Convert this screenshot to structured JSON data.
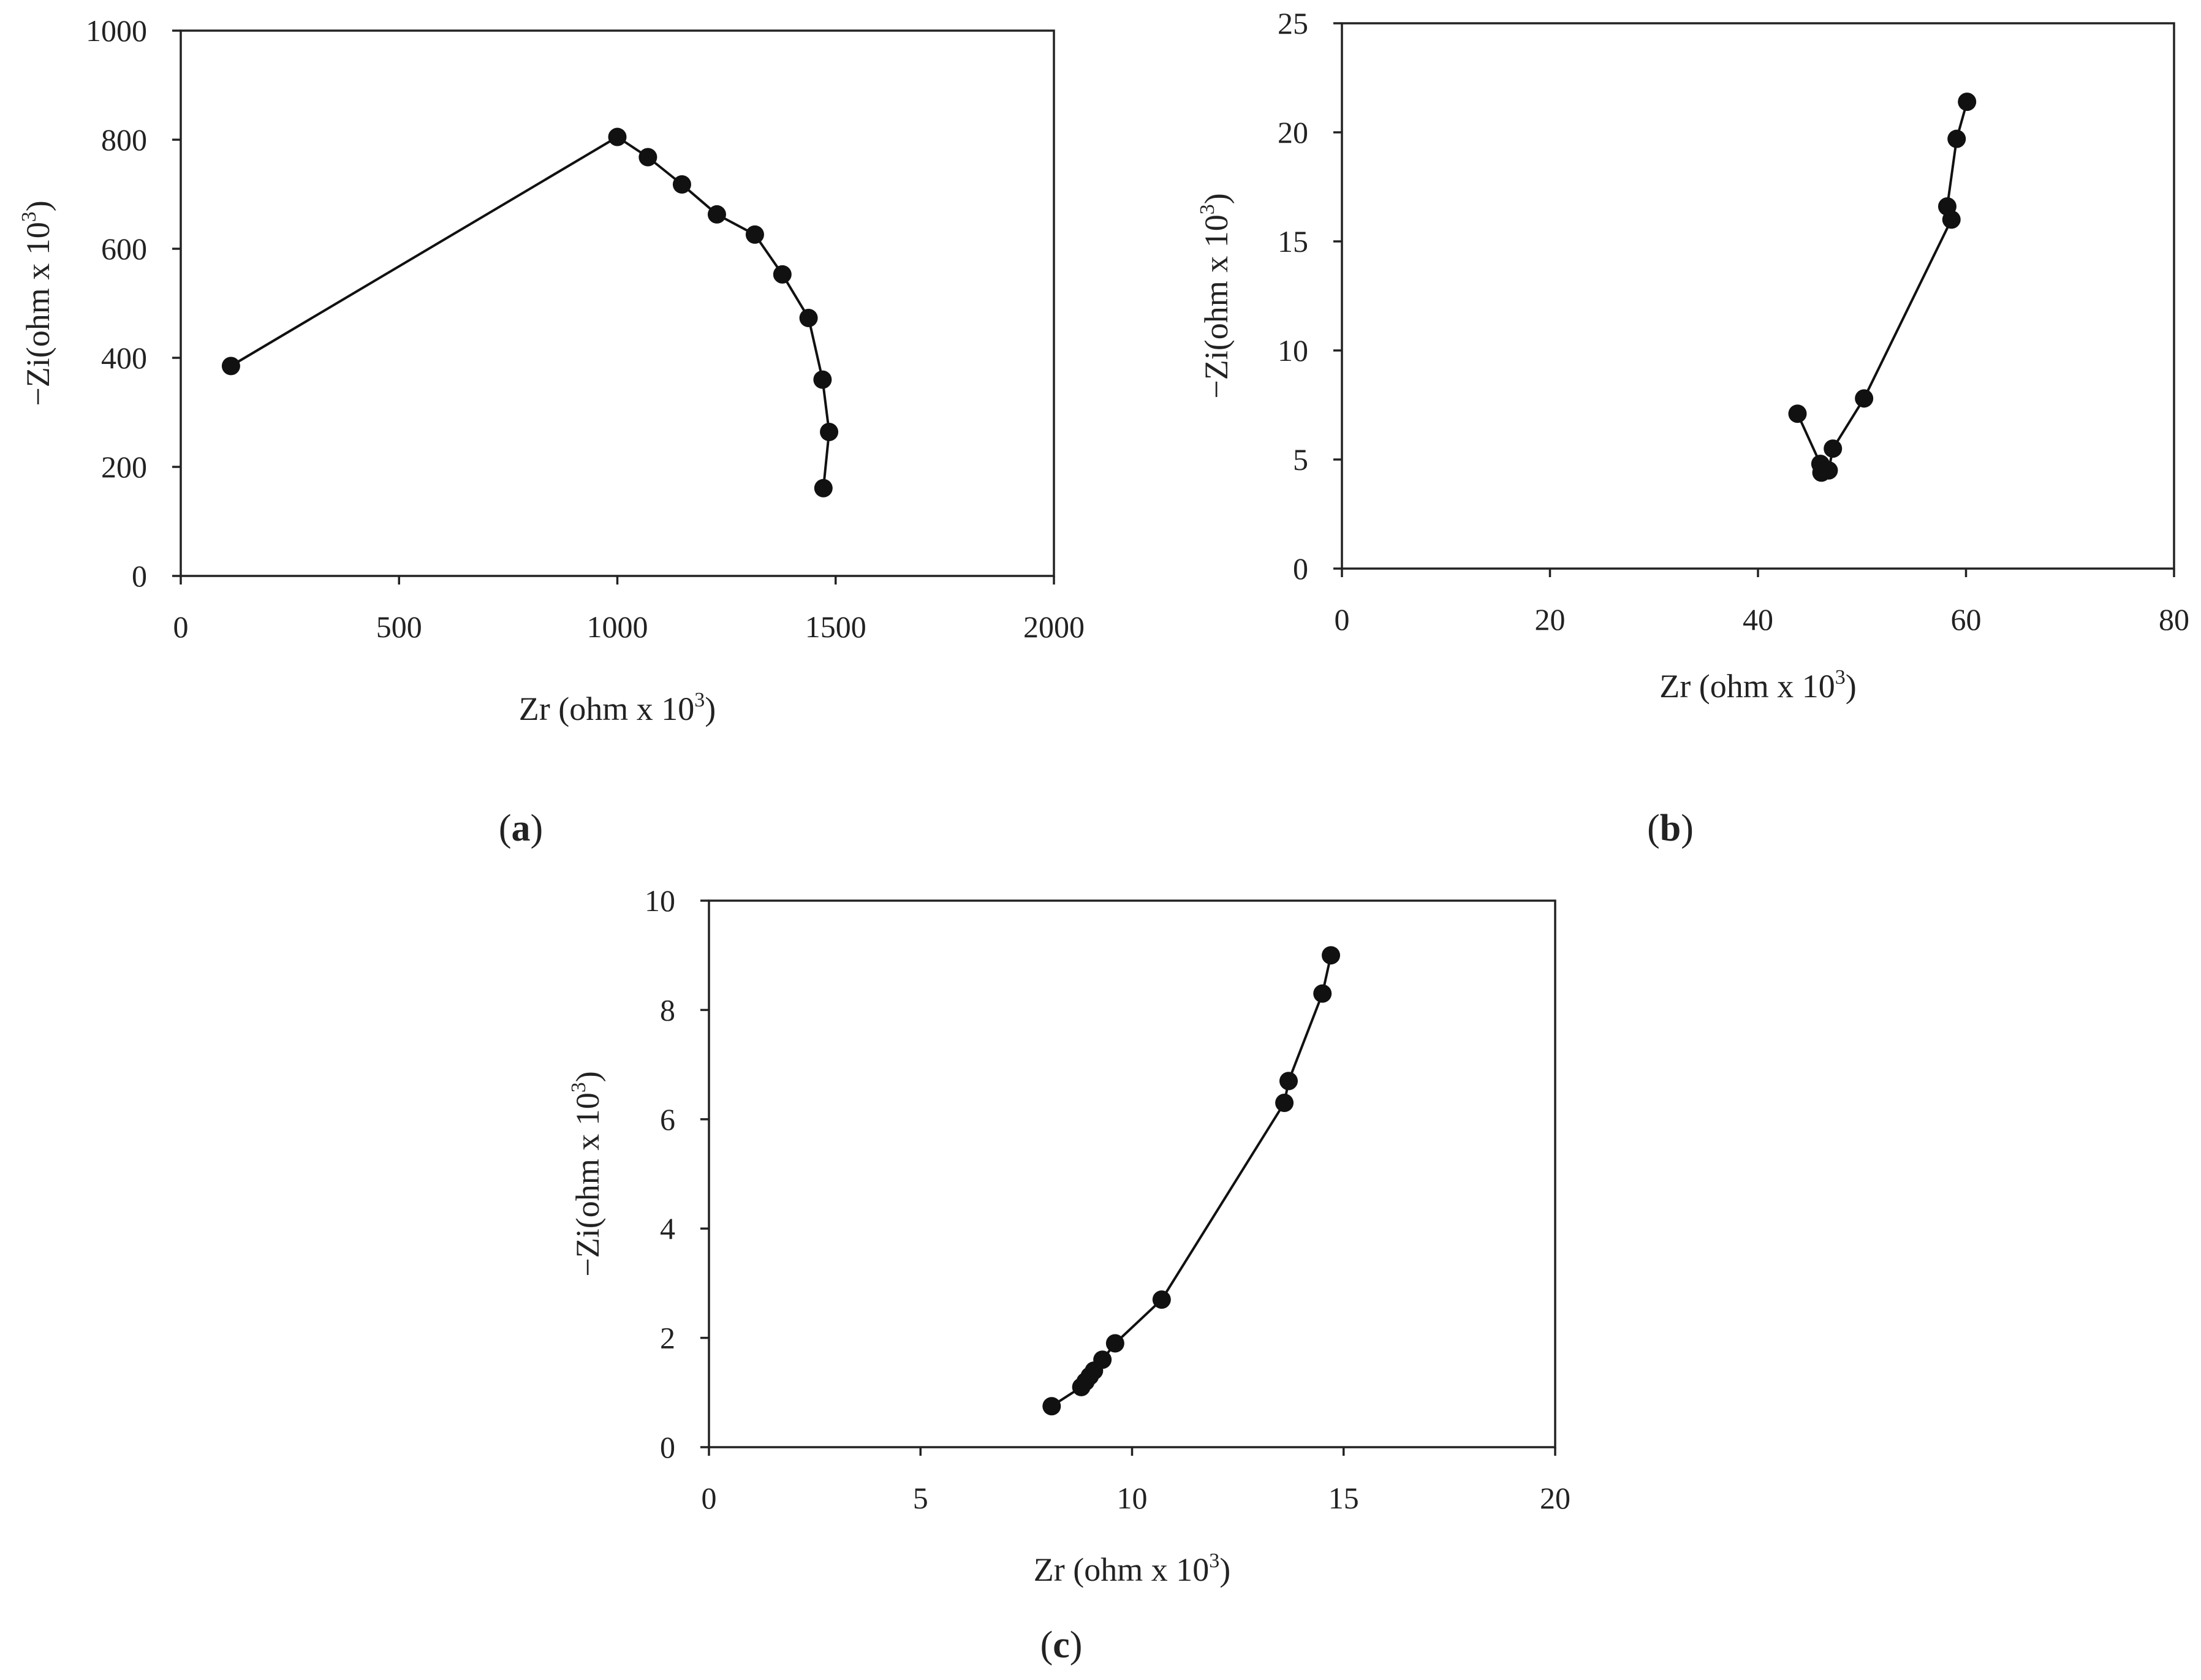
{
  "chart_data": [
    {
      "type": "line",
      "panel": "a",
      "xlabel_main": "Zr (ohm x 10",
      "xlabel_sup": "3",
      "xlabel_end": ")",
      "ylabel_main": "−Zi(ohm x 10",
      "ylabel_sup": "3",
      "ylabel_end": ")",
      "xlim": [
        0,
        2000
      ],
      "ylim": [
        0,
        1000
      ],
      "x_ticks": [
        0,
        500,
        1000,
        1500,
        2000
      ],
      "y_ticks": [
        0,
        200,
        400,
        600,
        800,
        1000
      ],
      "x_tick_labels": [
        "0",
        "500",
        "1000",
        "1500",
        "2000"
      ],
      "y_tick_labels": [
        "0",
        "200",
        "400",
        "600",
        "800",
        "1000"
      ],
      "grid": false,
      "legend": false,
      "series": [
        {
          "x": [
            115,
            1000,
            1070,
            1148,
            1228,
            1315,
            1378,
            1438,
            1470,
            1485,
            1472
          ],
          "y": [
            385,
            805,
            768,
            718,
            663,
            626,
            553,
            473,
            360,
            264,
            161
          ]
        }
      ]
    },
    {
      "type": "line",
      "panel": "b",
      "xlabel_main": "Zr (ohm x 10",
      "xlabel_sup": "3",
      "xlabel_end": ")",
      "ylabel_main": "−Zi(ohm x 10",
      "ylabel_sup": "3",
      "ylabel_end": ")",
      "xlim": [
        0,
        80
      ],
      "ylim": [
        0,
        25
      ],
      "x_ticks": [
        0,
        20,
        40,
        60,
        80
      ],
      "y_ticks": [
        0,
        5,
        10,
        15,
        20,
        25
      ],
      "x_tick_labels": [
        "0",
        "20",
        "40",
        "60",
        "80"
      ],
      "y_tick_labels": [
        "0",
        "5",
        "10",
        "15",
        "20",
        "25"
      ],
      "grid": false,
      "legend": false,
      "series": [
        {
          "x": [
            43.8,
            46.0,
            46.1,
            46.8,
            47.2,
            50.2,
            58.6,
            58.2,
            59.1,
            60.1
          ],
          "y": [
            7.1,
            4.8,
            4.4,
            4.5,
            5.5,
            7.8,
            16.0,
            16.6,
            19.7,
            21.4
          ]
        }
      ]
    },
    {
      "type": "line",
      "panel": "c",
      "xlabel_main": "Zr (ohm x 10",
      "xlabel_sup": "3",
      "xlabel_end": ")",
      "ylabel_main": "−Zi(ohm x 10",
      "ylabel_sup": "3",
      "ylabel_end": ")",
      "xlim": [
        0,
        20
      ],
      "ylim": [
        0,
        10
      ],
      "x_ticks": [
        0,
        5,
        10,
        15,
        20
      ],
      "y_ticks": [
        0,
        2,
        4,
        6,
        8,
        10
      ],
      "x_tick_labels": [
        "0",
        "5",
        "10",
        "15",
        "20"
      ],
      "y_tick_labels": [
        "0",
        "2",
        "4",
        "6",
        "8",
        "10"
      ],
      "grid": false,
      "legend": false,
      "series": [
        {
          "x": [
            8.1,
            8.8,
            8.9,
            9.0,
            9.1,
            9.3,
            9.6,
            10.7,
            13.6,
            13.7,
            14.5,
            14.7
          ],
          "y": [
            0.75,
            1.1,
            1.2,
            1.3,
            1.4,
            1.6,
            1.9,
            2.7,
            6.3,
            6.7,
            8.3,
            9.0
          ]
        }
      ]
    }
  ]
}
